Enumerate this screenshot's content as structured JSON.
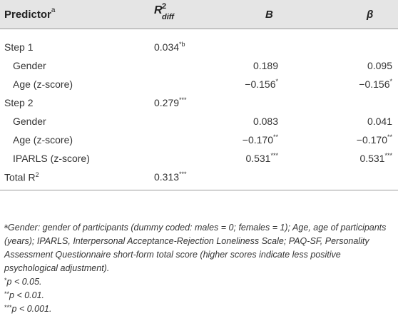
{
  "header": {
    "predictor": "Predictor",
    "predictor_mark": "a",
    "r2_base": "R",
    "r2_sup": "2",
    "r2_sub": "diff",
    "b": "B",
    "beta": "β"
  },
  "rows": [
    {
      "predictor": "Step 1",
      "indent": false,
      "r2": "0.034",
      "r2_mark": "*b",
      "b": "",
      "b_mark": "",
      "beta": "",
      "beta_mark": ""
    },
    {
      "predictor": "Gender",
      "indent": true,
      "r2": "",
      "r2_mark": "",
      "b": "0.189",
      "b_mark": "",
      "beta": "0.095",
      "beta_mark": ""
    },
    {
      "predictor": "Age (z-score)",
      "indent": true,
      "r2": "",
      "r2_mark": "",
      "b": "−0.156",
      "b_mark": "*",
      "beta": "−0.156",
      "beta_mark": "*"
    },
    {
      "predictor": "Step 2",
      "indent": false,
      "r2": "0.279",
      "r2_mark": "***",
      "b": "",
      "b_mark": "",
      "beta": "",
      "beta_mark": ""
    },
    {
      "predictor": "Gender",
      "indent": true,
      "r2": "",
      "r2_mark": "",
      "b": "0.083",
      "b_mark": "",
      "beta": "0.041",
      "beta_mark": ""
    },
    {
      "predictor": "Age (z-score)",
      "indent": true,
      "r2": "",
      "r2_mark": "",
      "b": "−0.170",
      "b_mark": "**",
      "beta": "−0.170",
      "beta_mark": "**"
    },
    {
      "predictor": "IPARLS (z-score)",
      "indent": true,
      "r2": "",
      "r2_mark": "",
      "b": "0.531",
      "b_mark": "***",
      "beta": "0.531",
      "beta_mark": "***"
    },
    {
      "predictor": "Total R",
      "predictor_sup": "2",
      "indent": false,
      "r2": "0.313",
      "r2_mark": "***",
      "b": "",
      "b_mark": "",
      "beta": "",
      "beta_mark": ""
    }
  ],
  "footnotes": {
    "a_mark": "a",
    "a_text": "Gender: gender of participants (dummy coded: males = 0; females = 1); Age, age of participants (years); IPARLS, Interpersonal Acceptance-Rejection Loneliness Scale; PAQ-SF, Personality Assessment Questionnaire short-form total score (higher scores indicate less positive psychological adjustment).",
    "p05_mark": "*",
    "p05_text": "p < 0.05.",
    "p01_mark": "**",
    "p01_text": "p < 0.01.",
    "p001_mark": "***",
    "p001_text": "p < 0.001."
  }
}
